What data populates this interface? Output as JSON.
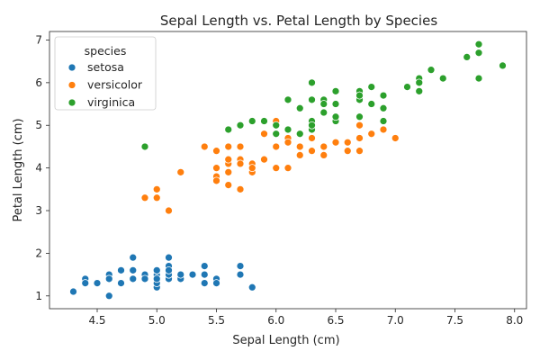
{
  "chart_data": {
    "type": "scatter",
    "title": "Sepal Length vs. Petal Length by Species",
    "xlabel": "Sepal Length (cm)",
    "ylabel": "Petal Length (cm)",
    "xlim": [
      4.1,
      8.1
    ],
    "ylim": [
      0.7,
      7.2
    ],
    "xticks": [
      4.5,
      5.0,
      5.5,
      6.0,
      6.5,
      7.0,
      7.5,
      8.0
    ],
    "xtick_labels": [
      "4.5",
      "5.0",
      "5.5",
      "6.0",
      "6.5",
      "7.0",
      "7.5",
      "8.0"
    ],
    "yticks": [
      1,
      2,
      3,
      4,
      5,
      6,
      7
    ],
    "ytick_labels": [
      "1",
      "2",
      "3",
      "4",
      "5",
      "6",
      "7"
    ],
    "grid": false,
    "legend": {
      "title": "species",
      "position": "top-left"
    },
    "series": [
      {
        "name": "setosa",
        "color": "#1f77b4",
        "points": [
          [
            5.1,
            1.4
          ],
          [
            4.9,
            1.4
          ],
          [
            4.7,
            1.3
          ],
          [
            4.6,
            1.5
          ],
          [
            5.0,
            1.4
          ],
          [
            5.4,
            1.7
          ],
          [
            4.6,
            1.4
          ],
          [
            5.0,
            1.5
          ],
          [
            4.4,
            1.4
          ],
          [
            4.9,
            1.5
          ],
          [
            5.4,
            1.5
          ],
          [
            4.8,
            1.6
          ],
          [
            4.8,
            1.4
          ],
          [
            4.3,
            1.1
          ],
          [
            5.8,
            1.2
          ],
          [
            5.7,
            1.5
          ],
          [
            5.4,
            1.3
          ],
          [
            5.1,
            1.4
          ],
          [
            5.7,
            1.7
          ],
          [
            5.1,
            1.5
          ],
          [
            5.4,
            1.7
          ],
          [
            5.1,
            1.5
          ],
          [
            4.6,
            1.0
          ],
          [
            5.1,
            1.7
          ],
          [
            4.8,
            1.9
          ],
          [
            5.0,
            1.6
          ],
          [
            5.0,
            1.6
          ],
          [
            5.2,
            1.5
          ],
          [
            5.2,
            1.4
          ],
          [
            4.7,
            1.6
          ],
          [
            4.8,
            1.6
          ],
          [
            5.4,
            1.5
          ],
          [
            5.2,
            1.5
          ],
          [
            5.5,
            1.4
          ],
          [
            4.9,
            1.5
          ],
          [
            5.0,
            1.2
          ],
          [
            5.5,
            1.3
          ],
          [
            4.9,
            1.4
          ],
          [
            4.4,
            1.3
          ],
          [
            5.1,
            1.5
          ],
          [
            5.0,
            1.3
          ],
          [
            4.5,
            1.3
          ],
          [
            4.4,
            1.3
          ],
          [
            5.0,
            1.6
          ],
          [
            5.1,
            1.9
          ],
          [
            4.8,
            1.4
          ],
          [
            5.1,
            1.6
          ],
          [
            4.6,
            1.4
          ],
          [
            5.3,
            1.5
          ],
          [
            5.0,
            1.4
          ]
        ]
      },
      {
        "name": "versicolor",
        "color": "#ff7f0e",
        "points": [
          [
            7.0,
            4.7
          ],
          [
            6.4,
            4.5
          ],
          [
            6.9,
            4.9
          ],
          [
            5.5,
            4.0
          ],
          [
            6.5,
            4.6
          ],
          [
            5.7,
            4.5
          ],
          [
            6.3,
            4.7
          ],
          [
            4.9,
            3.3
          ],
          [
            6.6,
            4.6
          ],
          [
            5.2,
            3.9
          ],
          [
            5.0,
            3.5
          ],
          [
            5.9,
            4.2
          ],
          [
            6.0,
            4.0
          ],
          [
            6.1,
            4.7
          ],
          [
            5.6,
            3.6
          ],
          [
            6.7,
            4.4
          ],
          [
            5.6,
            4.5
          ],
          [
            5.8,
            4.1
          ],
          [
            6.2,
            4.5
          ],
          [
            5.6,
            3.9
          ],
          [
            5.9,
            4.8
          ],
          [
            6.1,
            4.0
          ],
          [
            6.3,
            4.9
          ],
          [
            6.1,
            4.7
          ],
          [
            6.4,
            4.3
          ],
          [
            6.6,
            4.4
          ],
          [
            6.8,
            4.8
          ],
          [
            6.7,
            5.0
          ],
          [
            6.0,
            4.5
          ],
          [
            5.7,
            3.5
          ],
          [
            5.5,
            3.8
          ],
          [
            5.5,
            3.7
          ],
          [
            5.8,
            3.9
          ],
          [
            6.0,
            5.1
          ],
          [
            5.4,
            4.5
          ],
          [
            6.0,
            4.5
          ],
          [
            6.7,
            4.7
          ],
          [
            6.3,
            4.4
          ],
          [
            5.6,
            4.1
          ],
          [
            5.5,
            4.0
          ],
          [
            5.5,
            4.4
          ],
          [
            6.1,
            4.6
          ],
          [
            5.8,
            4.0
          ],
          [
            5.0,
            3.3
          ],
          [
            5.6,
            4.2
          ],
          [
            5.7,
            4.2
          ],
          [
            5.7,
            4.2
          ],
          [
            6.2,
            4.3
          ],
          [
            5.1,
            3.0
          ],
          [
            5.7,
            4.1
          ]
        ]
      },
      {
        "name": "virginica",
        "color": "#2ca02c",
        "points": [
          [
            6.3,
            6.0
          ],
          [
            5.8,
            5.1
          ],
          [
            7.1,
            5.9
          ],
          [
            6.3,
            5.6
          ],
          [
            6.5,
            5.8
          ],
          [
            7.6,
            6.6
          ],
          [
            4.9,
            4.5
          ],
          [
            7.3,
            6.3
          ],
          [
            6.7,
            5.8
          ],
          [
            7.2,
            6.1
          ],
          [
            6.5,
            5.1
          ],
          [
            6.4,
            5.3
          ],
          [
            6.8,
            5.5
          ],
          [
            5.7,
            5.0
          ],
          [
            5.8,
            5.1
          ],
          [
            6.4,
            5.3
          ],
          [
            6.5,
            5.5
          ],
          [
            7.7,
            6.7
          ],
          [
            7.7,
            6.9
          ],
          [
            6.0,
            5.0
          ],
          [
            6.9,
            5.7
          ],
          [
            5.6,
            4.9
          ],
          [
            7.7,
            6.7
          ],
          [
            6.3,
            4.9
          ],
          [
            6.7,
            5.7
          ],
          [
            7.2,
            6.0
          ],
          [
            6.2,
            4.8
          ],
          [
            6.1,
            4.9
          ],
          [
            6.4,
            5.6
          ],
          [
            7.2,
            5.8
          ],
          [
            7.4,
            6.1
          ],
          [
            7.9,
            6.4
          ],
          [
            6.4,
            5.6
          ],
          [
            6.3,
            5.1
          ],
          [
            6.1,
            5.6
          ],
          [
            7.7,
            6.1
          ],
          [
            6.3,
            5.6
          ],
          [
            6.4,
            5.5
          ],
          [
            6.0,
            4.8
          ],
          [
            6.9,
            5.4
          ],
          [
            6.7,
            5.6
          ],
          [
            6.9,
            5.1
          ],
          [
            5.8,
            5.1
          ],
          [
            6.8,
            5.9
          ],
          [
            6.7,
            5.7
          ],
          [
            6.7,
            5.2
          ],
          [
            6.3,
            5.0
          ],
          [
            6.5,
            5.2
          ],
          [
            6.2,
            5.4
          ],
          [
            5.9,
            5.1
          ]
        ]
      }
    ]
  }
}
